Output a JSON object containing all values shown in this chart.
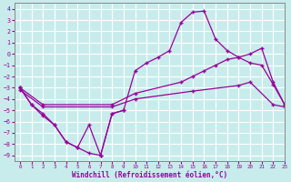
{
  "xlabel": "Windchill (Refroidissement éolien,°C)",
  "xlim": [
    -0.5,
    23
  ],
  "ylim": [
    -9.5,
    4.5
  ],
  "yticks": [
    4,
    3,
    2,
    1,
    0,
    -1,
    -2,
    -3,
    -4,
    -5,
    -6,
    -7,
    -8,
    -9
  ],
  "xticks": [
    0,
    1,
    2,
    3,
    4,
    5,
    6,
    7,
    8,
    9,
    10,
    11,
    12,
    13,
    14,
    15,
    16,
    17,
    18,
    19,
    20,
    21,
    22,
    23
  ],
  "bg_color": "#c8ecec",
  "line_color": "#990099",
  "grid_color": "#ffffff",
  "line1_x": [
    0,
    1,
    2,
    3,
    4,
    5,
    6,
    7,
    8,
    9,
    10,
    11,
    12,
    13,
    14,
    15,
    16,
    17,
    18,
    19,
    20,
    21,
    22,
    23
  ],
  "line1_y": [
    -3.0,
    -4.5,
    -5.3,
    -6.3,
    -7.8,
    -8.3,
    -8.8,
    -9.0,
    -5.3,
    -5.0,
    -1.5,
    -0.8,
    -0.3,
    0.3,
    2.8,
    3.7,
    3.8,
    1.3,
    0.3,
    -0.3,
    -0.8,
    -1.0,
    -2.7,
    -4.5
  ],
  "line2_x": [
    0,
    2,
    8,
    10,
    14,
    15,
    16,
    17,
    18,
    19,
    20,
    21,
    22,
    23
  ],
  "line2_y": [
    -3.0,
    -4.5,
    -4.5,
    -3.5,
    -2.5,
    -2.0,
    -1.5,
    -1.0,
    -0.5,
    -0.3,
    0.0,
    0.5,
    -2.5,
    -4.5
  ],
  "line3_x": [
    0,
    2,
    8,
    10,
    15,
    19,
    20,
    22,
    23
  ],
  "line3_y": [
    -3.2,
    -4.7,
    -4.7,
    -4.0,
    -3.3,
    -2.8,
    -2.5,
    -4.5,
    -4.7
  ],
  "line4_x": [
    0,
    1,
    2,
    3,
    4,
    5,
    6,
    7,
    8,
    9
  ],
  "line4_y": [
    -3.0,
    -4.5,
    -5.5,
    -6.3,
    -7.8,
    -8.3,
    -6.3,
    -9.0,
    -5.3,
    -5.0
  ]
}
